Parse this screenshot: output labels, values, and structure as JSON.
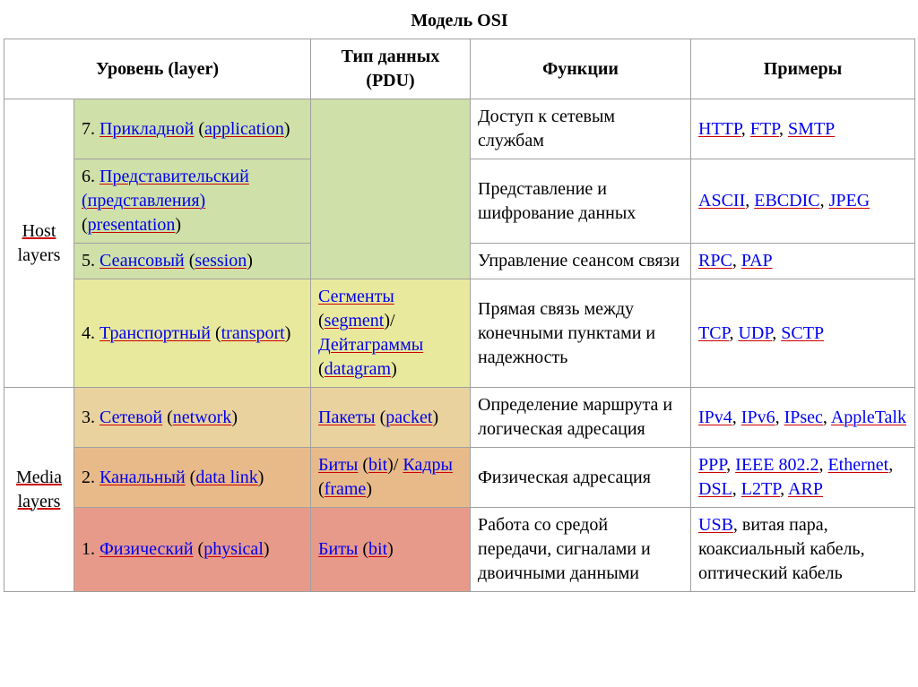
{
  "title": "Модель OSI",
  "headers": {
    "level": "Уровень (layer)",
    "pdu": "Тип данных (PDU)",
    "functions": "Функции",
    "examples": "Примеры"
  },
  "groups": {
    "host": {
      "line1_pre": "",
      "line1_u": "Host",
      "line2": "layers"
    },
    "media": {
      "line1_u": "Media",
      "line2_u": "layers"
    }
  },
  "colors": {
    "bg_green": "#cfe0a8",
    "bg_yellow": "#e9e99e",
    "bg_tan": "#e9d29e",
    "bg_orange": "#e8ba8a",
    "bg_red": "#e89a8a",
    "link": "#0000ee",
    "underline": "#cc0000"
  },
  "rows": [
    {
      "bg": "bg_green",
      "num": "7. ",
      "name_ru": "Прикладной",
      "name_en": "application",
      "func": "Доступ к сетевым службам",
      "examples": [
        {
          "t": "HTTP",
          "link": true
        },
        {
          "t": ", "
        },
        {
          "t": "FTP",
          "link": true
        },
        {
          "t": ", "
        },
        {
          "t": "SMTP",
          "link": true
        }
      ]
    },
    {
      "bg": "bg_green",
      "num": "6. ",
      "name_ru": "Представительский (представления)",
      "name_en": "presentation",
      "func": "Представление и шифрование данных",
      "examples": [
        {
          "t": "ASCII",
          "link": true
        },
        {
          "t": ", "
        },
        {
          "t": "EBCDIC",
          "link": true
        },
        {
          "t": ", "
        },
        {
          "t": "JPEG",
          "link": true
        }
      ]
    },
    {
      "bg": "bg_green",
      "num": "5. ",
      "name_ru": "Сеансовый",
      "name_en": "session",
      "func": "Управление сеансом связи",
      "examples": [
        {
          "t": "RPC",
          "link": true
        },
        {
          "t": ", "
        },
        {
          "t": "PAP",
          "link": true
        }
      ]
    },
    {
      "bg": "bg_yellow",
      "num": "4. ",
      "name_ru": "Транспортный",
      "name_en": "transport",
      "pdu_parts": [
        {
          "t": "Сегменты",
          "link": true
        },
        {
          "t": " ("
        },
        {
          "t": "segment",
          "link": true
        },
        {
          "t": ")/"
        },
        {
          "t": " "
        },
        {
          "t": "Дейтаграммы",
          "link": true
        },
        {
          "t": " ("
        },
        {
          "t": "datagram",
          "link": true
        },
        {
          "t": ")"
        }
      ],
      "func": "Прямая связь между конечными пунктами и надежность",
      "examples": [
        {
          "t": "TCP",
          "link": true
        },
        {
          "t": ", "
        },
        {
          "t": "UDP",
          "link": true
        },
        {
          "t": ", "
        },
        {
          "t": "SCTP",
          "link": true
        }
      ]
    },
    {
      "bg": "bg_tan",
      "num": "3. ",
      "name_ru": "Сетевой",
      "name_en": "network",
      "pdu_parts": [
        {
          "t": "Пакеты",
          "link": true
        },
        {
          "t": " ("
        },
        {
          "t": "packet",
          "link": true
        },
        {
          "t": ")"
        }
      ],
      "func": "Определение маршрута и логическая адресация",
      "examples": [
        {
          "t": "IPv4",
          "link": true
        },
        {
          "t": ", "
        },
        {
          "t": "IPv6",
          "link": true
        },
        {
          "t": ", "
        },
        {
          "t": "IPsec",
          "link": true
        },
        {
          "t": ", "
        },
        {
          "t": "AppleTalk",
          "link": true
        }
      ]
    },
    {
      "bg": "bg_orange",
      "num": "2. ",
      "name_ru": "Канальный",
      "name_en": "data link",
      "pdu_parts": [
        {
          "t": "Биты",
          "link": true
        },
        {
          "t": " ("
        },
        {
          "t": "bit",
          "link": true
        },
        {
          "t": ")/"
        },
        {
          "t": " "
        },
        {
          "t": "Кадры",
          "link": true
        },
        {
          "t": " ("
        },
        {
          "t": "frame",
          "link": true
        },
        {
          "t": ")"
        }
      ],
      "func": "Физическая адресация",
      "examples": [
        {
          "t": "PPP",
          "link": true
        },
        {
          "t": ", "
        },
        {
          "t": "IEEE 802.2",
          "link": true
        },
        {
          "t": ", "
        },
        {
          "t": "Ethernet",
          "link": true
        },
        {
          "t": ", "
        },
        {
          "t": "DSL",
          "link": true
        },
        {
          "t": ", "
        },
        {
          "t": "L2TP",
          "link": true
        },
        {
          "t": ", "
        },
        {
          "t": "ARP",
          "link": true
        }
      ]
    },
    {
      "bg": "bg_red",
      "num": "1. ",
      "name_ru": "Физический",
      "name_en": "physical",
      "pdu_parts": [
        {
          "t": "Биты",
          "link": true
        },
        {
          "t": " ("
        },
        {
          "t": "bit",
          "link": true
        },
        {
          "t": ")"
        }
      ],
      "func": "Работа со средой передачи, сигналами и двоичными данными",
      "examples": [
        {
          "t": "USB",
          "link": true
        },
        {
          "t": ", "
        },
        {
          "t": "витая пара"
        },
        {
          "t": ", "
        },
        {
          "t": "коаксиальный кабель"
        },
        {
          "t": ", "
        },
        {
          "t": "оптический кабель"
        }
      ]
    }
  ]
}
